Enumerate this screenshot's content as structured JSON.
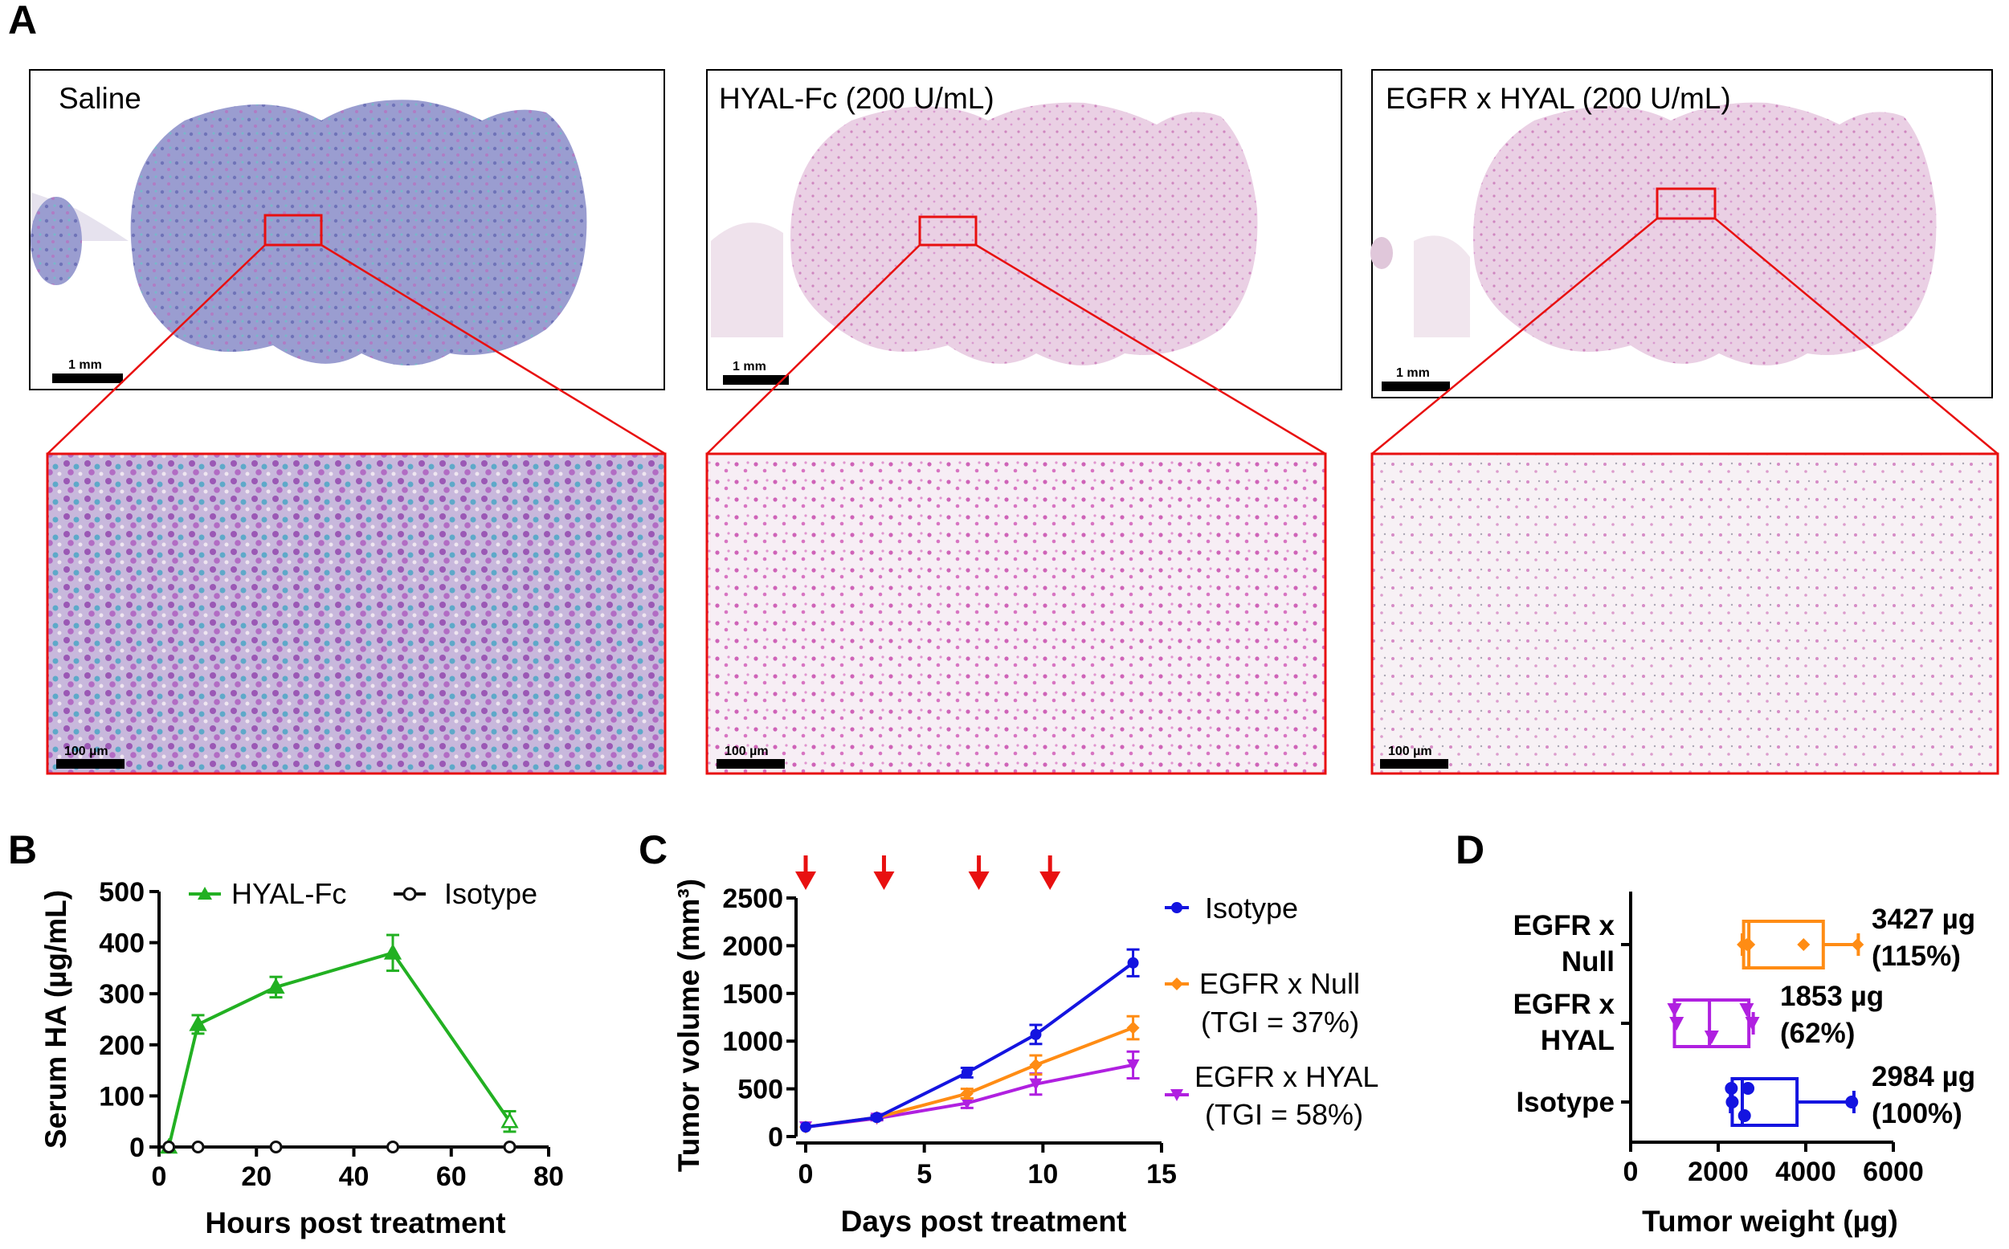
{
  "panel_a": {
    "label": "A",
    "top_titles": [
      "Saline",
      "HYAL-Fc (200 U/mL)",
      "EGFR x HYAL (200 U/mL)"
    ],
    "scale_top": "1 mm",
    "scale_bottom": "100 µm"
  },
  "colors": {
    "green": "#22b022",
    "black": "#111111",
    "blue": "#1414e0",
    "orange": "#ff8c14",
    "purple": "#b020e0",
    "red": "#e81010",
    "saline_stain": "#8a8ec9",
    "pink_stain": "#e0a3d0"
  },
  "chart_data": [
    {
      "panel": "B",
      "type": "line",
      "title": "",
      "xlabel": "Hours post treatment",
      "ylabel": "Serum HA (µg/mL)",
      "xlim": [
        0,
        80
      ],
      "ylim": [
        0,
        500
      ],
      "xticks": [
        0,
        20,
        40,
        60,
        80
      ],
      "yticks": [
        0,
        100,
        200,
        300,
        400,
        500
      ],
      "series": [
        {
          "name": "HYAL-Fc",
          "color_key": "green",
          "marker": "triangle",
          "x": [
            2,
            8,
            24,
            48,
            72
          ],
          "y": [
            0,
            240,
            313,
            380,
            50
          ],
          "err": [
            0,
            18,
            20,
            35,
            20
          ]
        },
        {
          "name": "Isotype",
          "color_key": "black",
          "marker": "circle-open",
          "x": [
            2,
            8,
            24,
            48,
            72
          ],
          "y": [
            0,
            0,
            0,
            0,
            0
          ],
          "err": [
            0,
            0,
            0,
            0,
            0
          ]
        }
      ]
    },
    {
      "panel": "C",
      "type": "line",
      "title": "",
      "xlabel": "Days post treatment",
      "ylabel": "Tumor volume (mm³)",
      "xlim": [
        0,
        15
      ],
      "ylim": [
        0,
        2500
      ],
      "xticks": [
        0,
        5,
        10,
        15
      ],
      "yticks": [
        0,
        500,
        1000,
        1500,
        2000,
        2500
      ],
      "dose_days": [
        0,
        3.3,
        7.3,
        10.3
      ],
      "series": [
        {
          "name": "Isotype",
          "note": "",
          "color_key": "blue",
          "x": [
            0,
            3,
            6.8,
            9.7,
            13.8
          ],
          "y": [
            100,
            200,
            670,
            1070,
            1820
          ],
          "err": [
            0,
            20,
            50,
            100,
            140
          ]
        },
        {
          "name": "EGFR x Null",
          "note": "(TGI = 37%)",
          "color_key": "orange",
          "x": [
            0,
            3,
            6.8,
            9.7,
            13.8
          ],
          "y": [
            100,
            200,
            450,
            750,
            1140
          ],
          "err": [
            0,
            20,
            50,
            100,
            120
          ]
        },
        {
          "name": "EGFR x HYAL",
          "note": "(TGI = 58%)",
          "color_key": "purple",
          "x": [
            0,
            3,
            6.8,
            9.7,
            13.8
          ],
          "y": [
            100,
            190,
            350,
            550,
            750
          ],
          "err": [
            0,
            20,
            50,
            110,
            140
          ]
        }
      ]
    },
    {
      "panel": "D",
      "type": "box",
      "title": "",
      "xlabel": "Tumor weight (µg)",
      "ylabel": "",
      "xlim": [
        0,
        6000
      ],
      "xticks": [
        0,
        2000,
        4000,
        6000
      ],
      "groups": [
        {
          "label": [
            "EGFR x",
            "Null"
          ],
          "color_key": "orange",
          "min": 2550,
          "q1": 2580,
          "median": 2700,
          "q3": 4400,
          "max": 5200,
          "points": [
            2570,
            2650,
            2700,
            3950,
            5180
          ],
          "annotation": [
            "3427 µg",
            "(115%)"
          ]
        },
        {
          "label": [
            "EGFR x",
            "HYAL"
          ],
          "color_key": "purple",
          "min": 1000,
          "q1": 1000,
          "median": 1800,
          "q3": 2700,
          "max": 2800,
          "points": [
            1000,
            1050,
            1850,
            2650,
            2780
          ],
          "annotation": [
            "1853 µg",
            "(62%)"
          ]
        },
        {
          "label": [
            "Isotype"
          ],
          "color_key": "blue",
          "min": 2280,
          "q1": 2320,
          "median": 2550,
          "q3": 3800,
          "max": 5100,
          "points": [
            2300,
            2320,
            2600,
            2680,
            5050
          ],
          "annotation": [
            "2984 µg",
            "(100%)"
          ]
        }
      ]
    }
  ]
}
